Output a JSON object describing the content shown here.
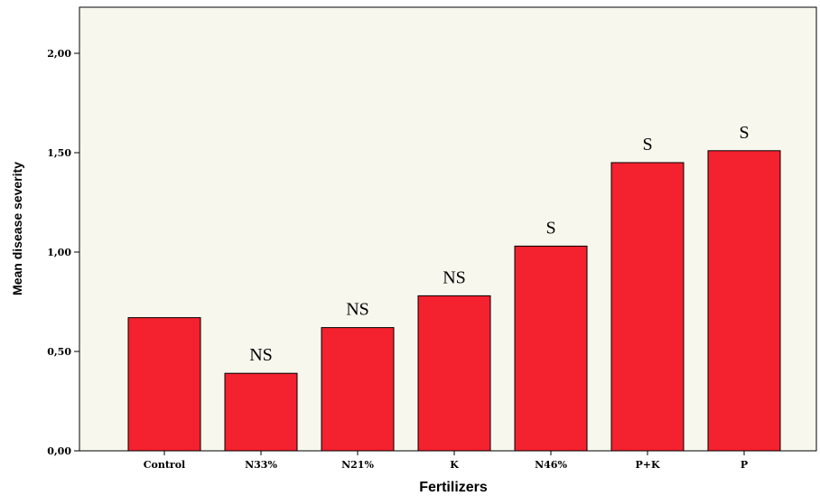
{
  "chart_data": {
    "type": "bar",
    "xlabel": "Fertilizers",
    "ylabel": "Mean disease severity",
    "ylim": [
      0,
      2.2
    ],
    "yticks": [
      "0,00",
      "0,50",
      "1,00",
      "1,50",
      "2,00"
    ],
    "ytick_values": [
      0,
      0.5,
      1.0,
      1.5,
      2.0
    ],
    "categories": [
      "Control",
      "N33%",
      "N21%",
      "K",
      "N46%",
      "P+K",
      "P"
    ],
    "values": [
      0.67,
      0.39,
      0.62,
      0.78,
      1.03,
      1.45,
      1.51
    ],
    "annotations": [
      "",
      "NS",
      "NS",
      "NS",
      "S",
      "S",
      "S"
    ],
    "bar_color": "#f4212e",
    "plot_background": "#f7f7ee",
    "grid": false
  }
}
